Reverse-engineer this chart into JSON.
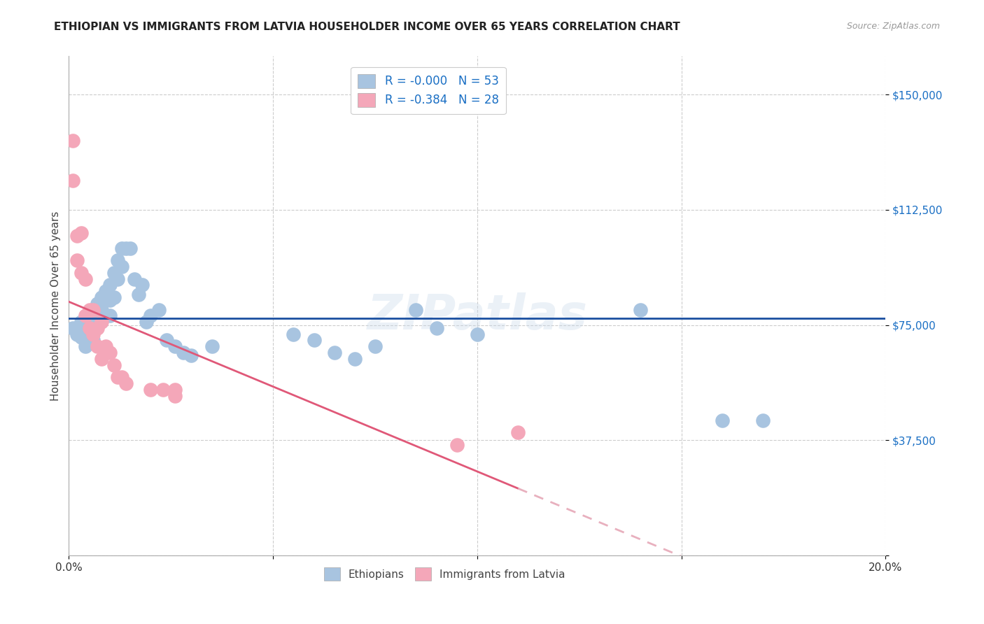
{
  "title": "ETHIOPIAN VS IMMIGRANTS FROM LATVIA HOUSEHOLDER INCOME OVER 65 YEARS CORRELATION CHART",
  "source": "Source: ZipAtlas.com",
  "ylabel": "Householder Income Over 65 years",
  "watermark": "ZIPatlas",
  "background_color": "#ffffff",
  "xlim": [
    0.0,
    0.2
  ],
  "ylim": [
    0,
    162500
  ],
  "yticks": [
    0,
    37500,
    75000,
    112500,
    150000
  ],
  "ytick_labels": [
    "",
    "$37,500",
    "$75,000",
    "$112,500",
    "$150,000"
  ],
  "xticks": [
    0.0,
    0.05,
    0.1,
    0.15,
    0.2
  ],
  "legend_R1": "R = -0.000",
  "legend_N1": "N = 53",
  "legend_R2": "R = -0.384",
  "legend_N2": "N = 28",
  "color_blue": "#a8c4e0",
  "color_pink": "#f4a7b9",
  "line_blue": "#1a4fa0",
  "line_pink": "#e05878",
  "line_pink_dash": "#e8b0be",
  "ethiopians_x": [
    0.001,
    0.002,
    0.003,
    0.003,
    0.004,
    0.004,
    0.004,
    0.005,
    0.005,
    0.005,
    0.006,
    0.006,
    0.006,
    0.007,
    0.007,
    0.007,
    0.008,
    0.008,
    0.009,
    0.009,
    0.01,
    0.01,
    0.01,
    0.011,
    0.011,
    0.012,
    0.012,
    0.013,
    0.013,
    0.014,
    0.015,
    0.016,
    0.017,
    0.018,
    0.019,
    0.02,
    0.022,
    0.024,
    0.026,
    0.028,
    0.03,
    0.035,
    0.055,
    0.06,
    0.065,
    0.07,
    0.075,
    0.085,
    0.09,
    0.1,
    0.14,
    0.16,
    0.17
  ],
  "ethiopians_y": [
    74000,
    72000,
    76000,
    71000,
    75000,
    71000,
    68000,
    76000,
    73000,
    70000,
    78000,
    74000,
    70000,
    82000,
    78000,
    75000,
    84000,
    80000,
    86000,
    78000,
    88000,
    83000,
    78000,
    92000,
    84000,
    96000,
    90000,
    100000,
    94000,
    100000,
    100000,
    90000,
    85000,
    88000,
    76000,
    78000,
    80000,
    70000,
    68000,
    66000,
    65000,
    68000,
    72000,
    70000,
    66000,
    64000,
    68000,
    80000,
    74000,
    72000,
    80000,
    44000,
    44000
  ],
  "latvia_x": [
    0.001,
    0.001,
    0.002,
    0.002,
    0.003,
    0.003,
    0.004,
    0.004,
    0.005,
    0.005,
    0.006,
    0.006,
    0.007,
    0.007,
    0.008,
    0.008,
    0.009,
    0.01,
    0.011,
    0.012,
    0.013,
    0.014,
    0.02,
    0.023,
    0.026,
    0.026,
    0.095,
    0.11
  ],
  "latvia_y": [
    135000,
    122000,
    104000,
    96000,
    105000,
    92000,
    90000,
    78000,
    80000,
    74000,
    80000,
    72000,
    74000,
    68000,
    76000,
    64000,
    68000,
    66000,
    62000,
    58000,
    58000,
    56000,
    54000,
    54000,
    54000,
    52000,
    36000,
    40000
  ],
  "grid_color": "#cccccc",
  "watermark_fontsize": 50,
  "watermark_color": "#c8d8ea",
  "watermark_alpha": 0.35
}
